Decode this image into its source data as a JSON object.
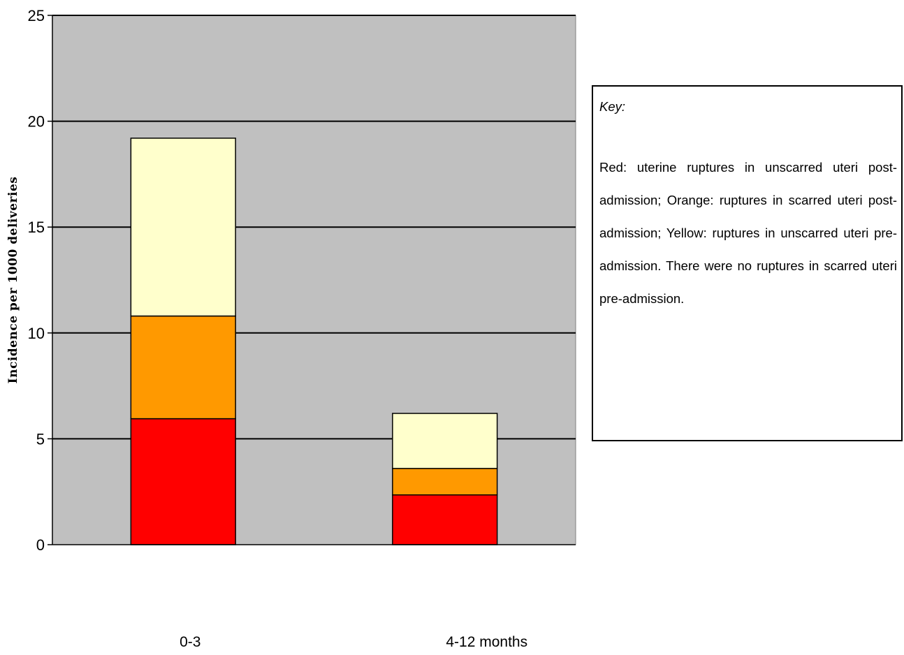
{
  "chart_data": {
    "type": "bar",
    "stacked": true,
    "categories": [
      "0-3",
      "4-12 months"
    ],
    "series": [
      {
        "color": "#ff0000",
        "values": [
          5.95,
          2.35
        ]
      },
      {
        "color": "#ff9900",
        "values": [
          4.85,
          1.25
        ]
      },
      {
        "color": "#ffffcc",
        "values": [
          8.4,
          2.6
        ]
      }
    ],
    "ylabel": "Incidence per 1000 deliveries",
    "xlabel": "",
    "ylim": [
      0,
      25
    ],
    "yticks": [
      0,
      5,
      10,
      15,
      20,
      25
    ],
    "grid": true,
    "plot_background": "#c0c0c0"
  },
  "key": {
    "title": "Key:",
    "text": "Red: uterine ruptures in unscarred uteri post-admission; Orange: ruptures in scarred uteri post-admission; Yellow: ruptures in unscarred uteri pre-admission. There were no ruptures in scarred uteri pre-admission."
  }
}
